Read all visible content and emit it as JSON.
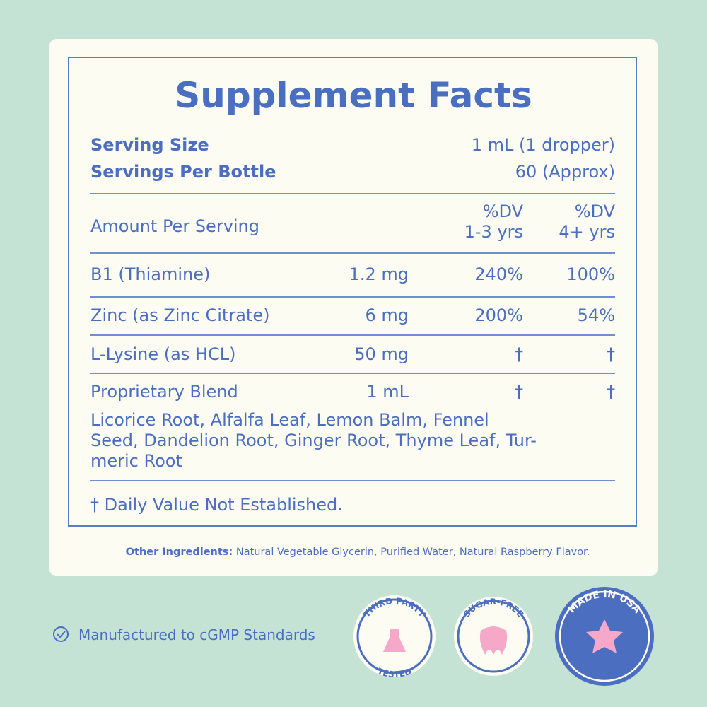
{
  "title": "Supplement Facts",
  "serving": [
    {
      "label": "Serving Size",
      "value": "1 mL (1 dropper)"
    },
    {
      "label": "Servings Per Bottle",
      "value": "60 (Approx)"
    }
  ],
  "header": {
    "amount": "Amount Per Serving",
    "dv_child": [
      "%DV",
      "1-3 yrs"
    ],
    "dv_adult": [
      "%DV",
      "4+ yrs"
    ]
  },
  "rows": [
    [
      "B1 (Thiamine)",
      "1.2 mg",
      "240%",
      "100%"
    ],
    [
      "Zinc (as Zinc Citrate)",
      "6 mg",
      "200%",
      "54%"
    ],
    [
      "L-Lysine (as HCL)",
      "50 mg",
      "†",
      "†"
    ],
    [
      "Proprietary Blend",
      "1 mL",
      "†",
      "†"
    ]
  ],
  "blend": [
    "Licorice Root, Alfalfa Leaf, Lemon Balm, Fennel",
    "Seed, Dandelion Root, Ginger Root, Thyme Leaf, Tur-",
    "meric Root"
  ],
  "footnote": "† Daily Value Not Established.",
  "other_ingredients": {
    "label": "Other Ingredients:",
    "text": "Natural Vegetable Glycerin, Purified Water, Natural Raspberry Flavor."
  },
  "manufactured": "Manufactured to cGMP Standards",
  "badges": {
    "third_party": [
      "THIRD PARTY",
      "TESTED"
    ],
    "sugar_free": "SUGAR-FREE",
    "usa": "MADE IN USA"
  }
}
